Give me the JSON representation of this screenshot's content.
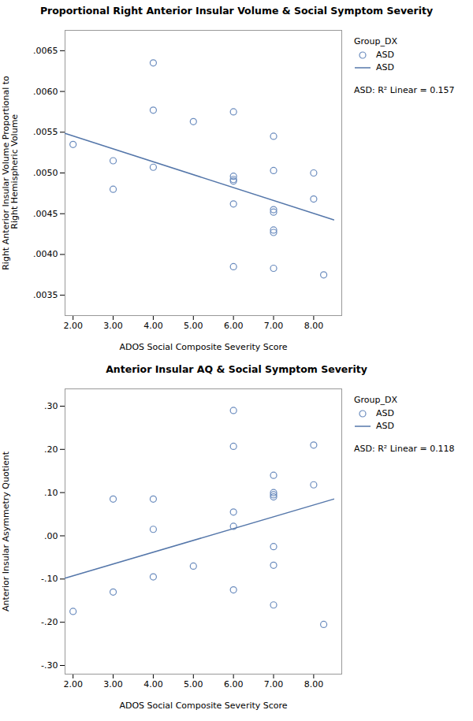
{
  "chart_data": [
    {
      "type": "scatter",
      "title": "Proportional Right Anterior Insular Volume & Social Symptom Severity",
      "xlabel": "ADOS Social Composite Severity Score",
      "ylabel": "Right Anterior Insular Volume Proportional to\n Right Hemispheric Volume",
      "xlim": [
        1.8,
        8.7
      ],
      "ylim": [
        0.00325,
        0.00675
      ],
      "xticks": [
        {
          "value": 2.0,
          "label": "2.00"
        },
        {
          "value": 3.0,
          "label": "3.00"
        },
        {
          "value": 4.0,
          "label": "4.00"
        },
        {
          "value": 5.0,
          "label": "5.00"
        },
        {
          "value": 6.0,
          "label": "6.00"
        },
        {
          "value": 7.0,
          "label": "7.00"
        },
        {
          "value": 8.0,
          "label": "8.00"
        }
      ],
      "yticks": [
        {
          "value": 0.0035,
          "label": ".0035"
        },
        {
          "value": 0.004,
          "label": ".0040"
        },
        {
          "value": 0.0045,
          "label": ".0045"
        },
        {
          "value": 0.005,
          "label": ".0050"
        },
        {
          "value": 0.0055,
          "label": ".0055"
        },
        {
          "value": 0.006,
          "label": ".0060"
        },
        {
          "value": 0.0065,
          "label": ".0065"
        }
      ],
      "grid": false,
      "legend": "right",
      "legend_title": "Group_DX",
      "annotations": [
        "ASD: R² Linear = 0.157"
      ],
      "series": [
        {
          "name": "ASD",
          "type": "scatter",
          "marker": "o",
          "color": "#6b8cbe",
          "x": [
            2.0,
            3.0,
            3.0,
            4.0,
            4.0,
            4.0,
            5.0,
            6.0,
            6.0,
            6.0,
            6.0,
            6.0,
            6.0,
            7.0,
            7.0,
            7.0,
            7.0,
            7.0,
            7.0,
            7.0,
            8.0,
            8.0,
            8.25
          ],
          "values": [
            0.00535,
            0.00515,
            0.0048,
            0.00635,
            0.00577,
            0.00507,
            0.00563,
            0.00575,
            0.00496,
            0.00492,
            0.0049,
            0.00462,
            0.00385,
            0.00383,
            0.00545,
            0.00503,
            0.00455,
            0.00452,
            0.0043,
            0.00427,
            0.005,
            0.00468,
            0.00375
          ]
        },
        {
          "name": "ASD",
          "type": "line",
          "line_style": "solid",
          "color": "#5577aa",
          "x": [
            1.8,
            8.5
          ],
          "values": [
            0.005485,
            0.004425
          ]
        }
      ]
    },
    {
      "type": "scatter",
      "title": "Anterior Insular AQ & Social Symptom Severity",
      "xlabel": "ADOS Social Composite Severity Score",
      "ylabel": "Anterior Insular Asymmetry Quotient",
      "xlim": [
        1.8,
        8.7
      ],
      "ylim": [
        -0.32,
        0.34
      ],
      "xticks": [
        {
          "value": 2.0,
          "label": "2.00"
        },
        {
          "value": 3.0,
          "label": "3.00"
        },
        {
          "value": 4.0,
          "label": "4.00"
        },
        {
          "value": 5.0,
          "label": "5.00"
        },
        {
          "value": 6.0,
          "label": "6.00"
        },
        {
          "value": 7.0,
          "label": "7.00"
        },
        {
          "value": 8.0,
          "label": "8.00"
        }
      ],
      "yticks": [
        {
          "value": -0.3,
          "label": "-.30"
        },
        {
          "value": -0.2,
          "label": "-.20"
        },
        {
          "value": -0.1,
          "label": "-.10"
        },
        {
          "value": 0.0,
          "label": ".00"
        },
        {
          "value": 0.1,
          "label": ".10"
        },
        {
          "value": 0.2,
          "label": ".20"
        },
        {
          "value": 0.3,
          "label": ".30"
        }
      ],
      "grid": false,
      "legend": "right",
      "legend_title": "Group_DX",
      "annotations": [
        "ASD: R² Linear = 0.118"
      ],
      "series": [
        {
          "name": "ASD",
          "type": "scatter",
          "marker": "o",
          "color": "#6b8cbe",
          "x": [
            2.0,
            3.0,
            3.0,
            4.0,
            4.0,
            4.0,
            5.0,
            6.0,
            6.0,
            6.0,
            6.0,
            6.0,
            7.0,
            7.0,
            7.0,
            7.0,
            7.0,
            7.0,
            7.0,
            8.0,
            8.0,
            8.25
          ],
          "values": [
            -0.175,
            -0.13,
            0.085,
            0.085,
            0.015,
            -0.095,
            -0.07,
            0.29,
            0.207,
            0.055,
            0.022,
            -0.125,
            0.14,
            0.1,
            0.095,
            0.09,
            -0.025,
            -0.068,
            -0.16,
            0.21,
            0.118,
            -0.205
          ]
        },
        {
          "name": "ASD",
          "type": "line",
          "line_style": "solid",
          "color": "#5577aa",
          "x": [
            1.8,
            8.5
          ],
          "values": [
            -0.098,
            0.085
          ]
        }
      ]
    }
  ]
}
